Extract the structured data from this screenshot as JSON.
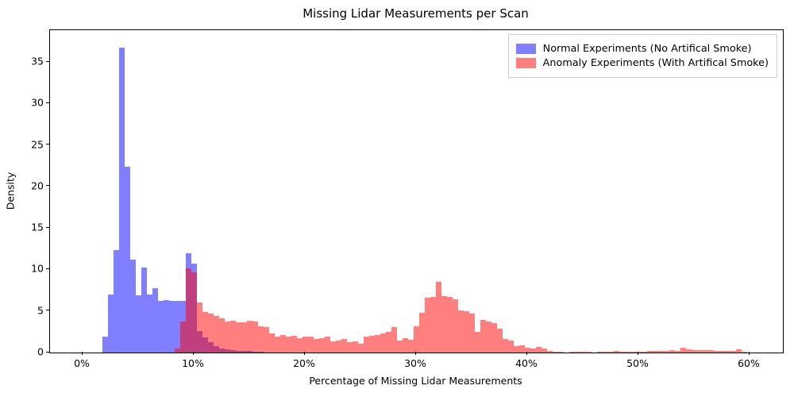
{
  "chart_data": {
    "type": "histogram",
    "title": "Missing Lidar Measurements per Scan",
    "xlabel": "Percentage of Missing Lidar Measurements",
    "ylabel": "Density",
    "legend_position": "upper right",
    "grid": false,
    "xlim": [
      -2.93,
      63.0
    ],
    "ylim": [
      0,
      38.82
    ],
    "x_ticks": [
      0,
      10,
      20,
      30,
      40,
      50,
      60
    ],
    "x_tick_labels": [
      "0%",
      "10%",
      "20%",
      "30%",
      "40%",
      "50%",
      "60%"
    ],
    "y_ticks": [
      0,
      5,
      10,
      15,
      20,
      25,
      30,
      35
    ],
    "y_tick_labels": [
      "0",
      "5",
      "10",
      "15",
      "20",
      "25",
      "30",
      "35"
    ],
    "bin_width_percent": 0.5,
    "colors": {
      "normal_fill_on_white": "#8080ff",
      "anomaly_fill_on_white": "#ff8080",
      "overlap_fill": "#c04080",
      "normal_rgba": "rgba(0,0,255,0.5)",
      "anomaly_rgba": "rgba(255,0,0,0.5)",
      "axis": "#000000",
      "legend_border": "#cccccc"
    },
    "series": [
      {
        "name": "Normal Experiments (No Artifical Smoke)",
        "color": "rgba(0,0,255,0.5)",
        "bins_start_percent": 1.75,
        "densities": [
          1.9,
          7.0,
          12.3,
          36.7,
          22.4,
          11.2,
          6.9,
          10.2,
          7.0,
          7.7,
          6.2,
          6.3,
          6.2,
          6.2,
          6.2,
          12.0,
          10.7,
          2.6,
          1.8,
          1.2,
          0.8,
          0.5,
          0.35,
          0.25,
          0.2,
          0.15,
          0.15,
          0.1,
          0.1
        ]
      },
      {
        "name": "Anomaly Experiments (With Artifical Smoke)",
        "color": "rgba(255,0,0,0.5)",
        "bins_start_percent": 8.25,
        "densities": [
          0.5,
          3.7,
          10.1,
          9.7,
          6.0,
          4.9,
          4.7,
          4.4,
          4.1,
          3.7,
          3.8,
          3.6,
          3.6,
          3.85,
          3.7,
          3.2,
          3.1,
          2.3,
          1.9,
          2.1,
          1.9,
          2.0,
          1.7,
          1.9,
          1.9,
          1.6,
          1.7,
          1.9,
          1.3,
          1.4,
          1.6,
          1.2,
          1.3,
          1.1,
          1.9,
          2.0,
          2.1,
          2.3,
          2.5,
          3.1,
          1.4,
          1.7,
          1.5,
          3.2,
          4.8,
          6.6,
          6.7,
          8.5,
          6.8,
          6.7,
          6.4,
          5.1,
          5.0,
          4.7,
          2.5,
          3.9,
          3.7,
          3.5,
          2.9,
          1.6,
          1.4,
          0.8,
          0.9,
          0.6,
          0.45,
          0.7,
          0.45,
          0.22,
          0.13,
          0.05,
          0,
          0.05,
          0.13,
          0.05,
          0.05,
          0,
          0.05,
          0.05,
          0.05,
          0.15,
          0.1,
          0.05,
          0.05,
          0.05,
          0.1,
          0.2,
          0.22,
          0.2,
          0.2,
          0.3,
          0.22,
          0.6,
          0.35,
          0.3,
          0.25,
          0.28,
          0.3,
          0.2,
          0.15,
          0.2,
          0.15,
          0.4,
          0.13
        ]
      }
    ]
  }
}
